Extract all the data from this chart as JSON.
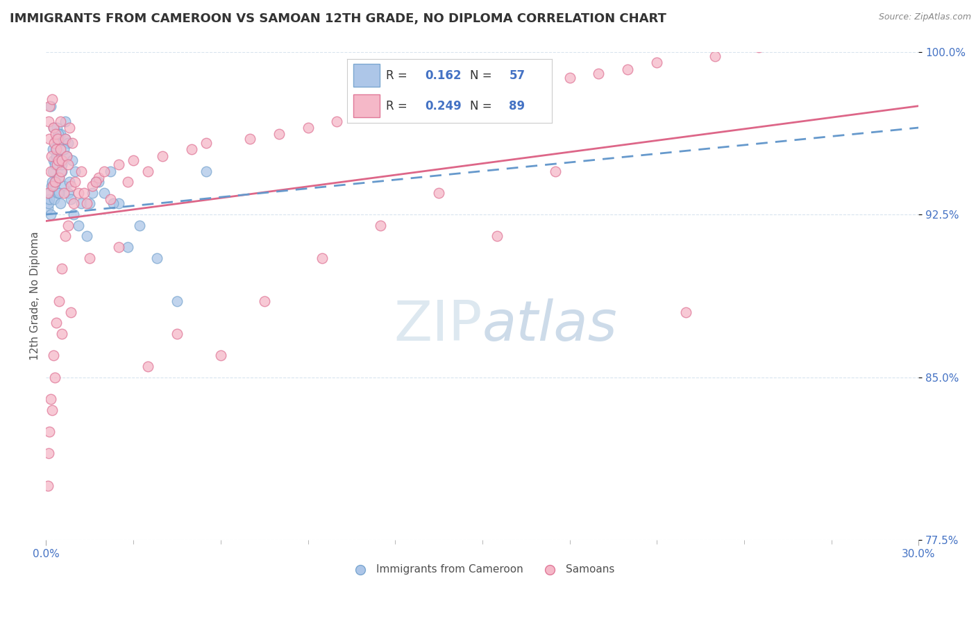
{
  "title": "IMMIGRANTS FROM CAMEROON VS SAMOAN 12TH GRADE, NO DIPLOMA CORRELATION CHART",
  "source_text": "Source: ZipAtlas.com",
  "ylabel": "12th Grade, No Diploma",
  "xlim": [
    0.0,
    30.0
  ],
  "ylim": [
    77.5,
    100.0
  ],
  "ytick_values": [
    77.5,
    85.0,
    92.5,
    100.0
  ],
  "cameroon_R": 0.162,
  "cameroon_N": 57,
  "samoan_R": 0.249,
  "samoan_N": 89,
  "cameroon_color": "#adc6e8",
  "samoan_color": "#f5b8c8",
  "cameroon_edge_color": "#7ba7d0",
  "samoan_edge_color": "#e07898",
  "cameroon_line_color": "#6699cc",
  "samoan_line_color": "#dd6688",
  "legend_color": "#4472c4",
  "title_color": "#333333",
  "axis_tick_color": "#4472c4",
  "ylabel_color": "#555555",
  "source_color": "#888888",
  "watermark_color": "#dde8f0",
  "grid_color": "#d8e4ee",
  "background_color": "#ffffff",
  "cam_x": [
    0.05,
    0.08,
    0.1,
    0.12,
    0.15,
    0.18,
    0.2,
    0.22,
    0.25,
    0.28,
    0.3,
    0.32,
    0.35,
    0.38,
    0.4,
    0.42,
    0.45,
    0.48,
    0.5,
    0.52,
    0.55,
    0.6,
    0.65,
    0.7,
    0.75,
    0.8,
    0.85,
    0.9,
    1.0,
    1.1,
    1.2,
    1.4,
    1.6,
    1.8,
    2.0,
    2.2,
    2.5,
    2.8,
    3.2,
    3.8,
    4.5,
    0.15,
    0.25,
    0.35,
    0.45,
    0.55,
    0.65,
    0.75,
    0.22,
    0.32,
    0.42,
    0.6,
    0.95,
    1.5,
    1.7,
    2.3,
    5.5
  ],
  "cam_y": [
    92.8,
    93.0,
    93.2,
    93.5,
    92.5,
    93.8,
    94.0,
    94.5,
    95.0,
    93.2,
    94.8,
    95.5,
    96.0,
    96.5,
    93.5,
    95.8,
    94.2,
    93.0,
    96.2,
    95.0,
    94.5,
    93.8,
    96.8,
    95.2,
    93.5,
    94.0,
    93.2,
    95.0,
    94.5,
    92.0,
    93.0,
    91.5,
    93.5,
    94.0,
    93.5,
    94.5,
    93.0,
    91.0,
    92.0,
    90.5,
    88.5,
    97.5,
    96.5,
    95.2,
    93.5,
    94.8,
    96.0,
    95.8,
    95.5,
    94.0,
    96.2,
    95.5,
    92.5,
    93.0,
    94.0,
    93.0,
    94.5
  ],
  "sam_x": [
    0.05,
    0.08,
    0.1,
    0.12,
    0.15,
    0.18,
    0.2,
    0.22,
    0.25,
    0.28,
    0.3,
    0.32,
    0.35,
    0.38,
    0.4,
    0.42,
    0.45,
    0.48,
    0.5,
    0.52,
    0.55,
    0.6,
    0.65,
    0.7,
    0.75,
    0.8,
    0.85,
    0.9,
    1.0,
    1.1,
    1.2,
    1.4,
    1.6,
    1.8,
    2.0,
    2.5,
    3.0,
    3.5,
    4.0,
    5.0,
    5.5,
    7.0,
    8.0,
    9.0,
    10.0,
    11.0,
    12.0,
    13.0,
    14.0,
    15.0,
    16.0,
    17.0,
    18.0,
    19.0,
    20.0,
    21.0,
    23.0,
    24.5,
    0.06,
    0.1,
    0.15,
    0.25,
    0.35,
    0.45,
    0.55,
    0.65,
    0.75,
    0.95,
    1.3,
    1.7,
    2.2,
    2.8,
    0.08,
    0.2,
    0.3,
    0.55,
    0.85,
    1.5,
    2.5,
    3.5,
    4.5,
    6.0,
    7.5,
    9.5,
    11.5,
    13.5,
    15.5,
    17.5,
    22.0
  ],
  "sam_y": [
    93.5,
    96.8,
    97.5,
    96.0,
    94.5,
    95.2,
    97.8,
    93.8,
    96.5,
    95.8,
    94.0,
    96.2,
    95.5,
    94.8,
    96.0,
    95.0,
    94.2,
    95.5,
    96.8,
    94.5,
    95.0,
    93.5,
    96.0,
    95.2,
    94.8,
    96.5,
    93.8,
    95.8,
    94.0,
    93.5,
    94.5,
    93.0,
    93.8,
    94.2,
    94.5,
    94.8,
    95.0,
    94.5,
    95.2,
    95.5,
    95.8,
    96.0,
    96.2,
    96.5,
    96.8,
    97.0,
    97.2,
    97.5,
    97.8,
    98.0,
    98.2,
    98.5,
    98.8,
    99.0,
    99.2,
    99.5,
    99.8,
    100.2,
    80.0,
    82.5,
    84.0,
    86.0,
    87.5,
    88.5,
    90.0,
    91.5,
    92.0,
    93.0,
    93.5,
    94.0,
    93.2,
    94.0,
    81.5,
    83.5,
    85.0,
    87.0,
    88.0,
    90.5,
    91.0,
    85.5,
    87.0,
    86.0,
    88.5,
    90.5,
    92.0,
    93.5,
    91.5,
    94.5,
    88.0
  ],
  "cam_line_x": [
    0.0,
    30.0
  ],
  "cam_line_y": [
    92.5,
    96.5
  ],
  "sam_line_x": [
    0.0,
    30.0
  ],
  "sam_line_y": [
    92.2,
    97.5
  ]
}
